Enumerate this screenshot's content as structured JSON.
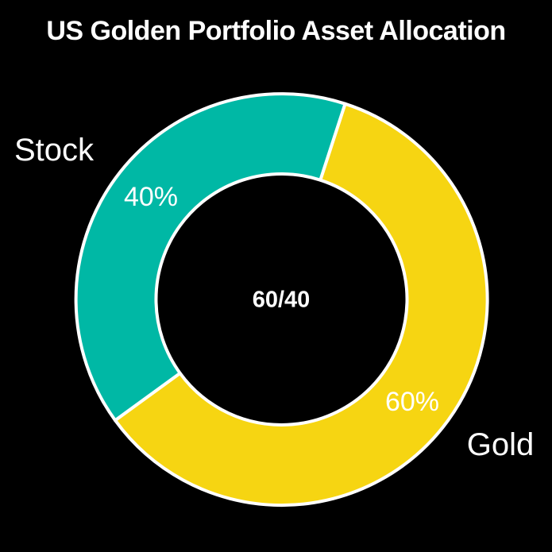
{
  "chart_data": {
    "type": "pie",
    "subtype": "donut",
    "title": "US Golden Portfolio Asset Allocation",
    "categories": [
      "Gold",
      "Stock"
    ],
    "values": [
      60,
      40
    ],
    "slices": [
      {
        "label": "Gold",
        "value": 60,
        "display": "60%",
        "color": "#F6D512"
      },
      {
        "label": "Stock",
        "value": 40,
        "display": "40%",
        "color": "#00B8A5"
      }
    ],
    "center_text": "60/40",
    "start_angle_deg": 18,
    "direction": "clockwise",
    "inner_radius_ratio": 0.61,
    "stroke_color": "#FFFFFF",
    "background_color": "#000000",
    "text_color": "#FFFFFF",
    "legend_position": "none",
    "grid": false
  }
}
